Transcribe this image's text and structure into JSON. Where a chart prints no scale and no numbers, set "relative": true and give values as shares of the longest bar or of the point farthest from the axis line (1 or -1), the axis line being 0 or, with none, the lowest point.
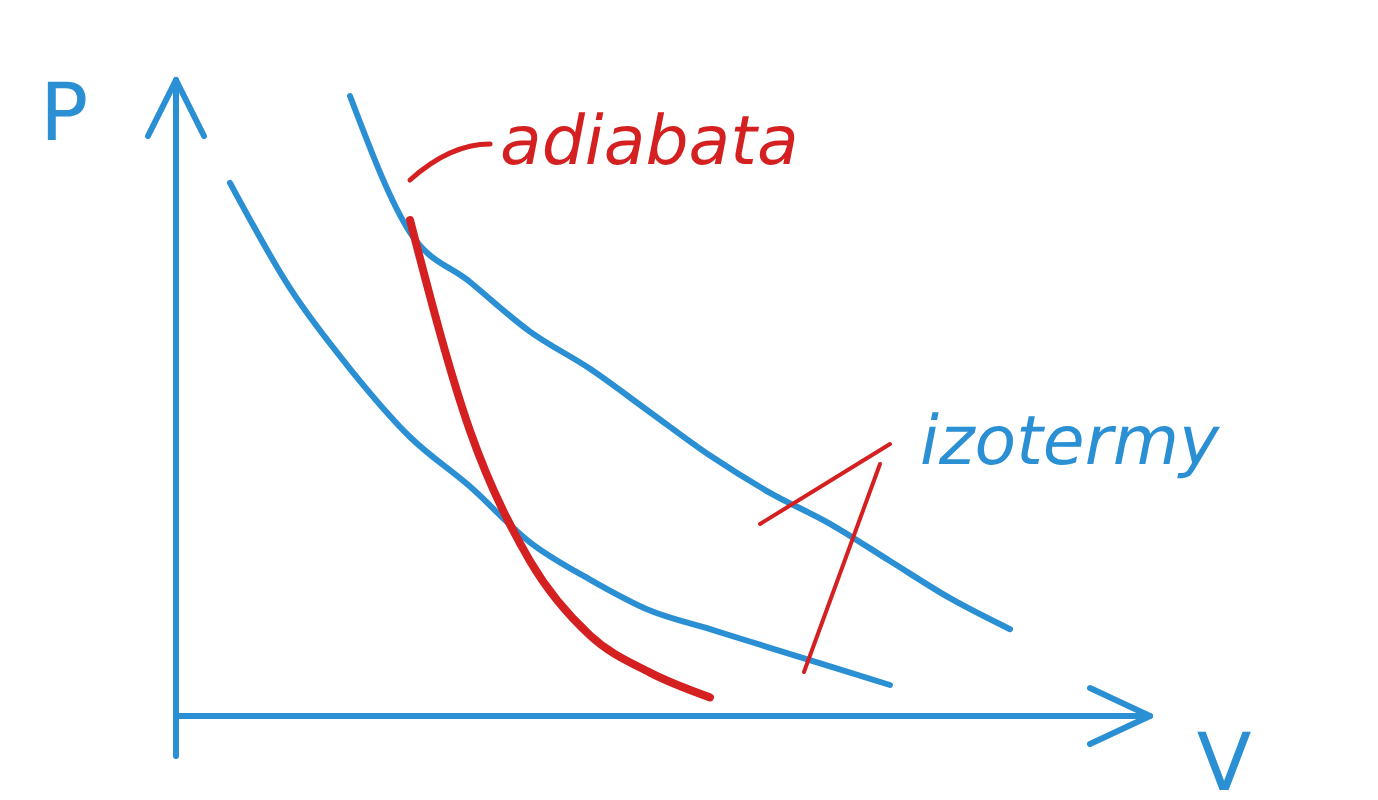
{
  "chart_data": {
    "type": "line",
    "relative": true,
    "xlabel": "V",
    "ylabel": "P",
    "legend": false,
    "grid": false,
    "marker": "none",
    "line_style": "solid",
    "categories": [
      null,
      null,
      null,
      null,
      null,
      null,
      null,
      null,
      null,
      null,
      null,
      null,
      null,
      null
    ],
    "series": [
      {
        "color": "#2b8fd4",
        "values": [
          0.86,
          0.69,
          0.56,
          0.45,
          0.37,
          0.28,
          0.22,
          0.17,
          0.14,
          0.11,
          0.08,
          0.05,
          null,
          null
        ]
      },
      {
        "color": "#2b8fd4",
        "values": [
          null,
          null,
          1.0,
          0.78,
          0.7,
          0.62,
          0.56,
          0.49,
          0.42,
          0.36,
          0.31,
          0.25,
          0.19,
          0.14
        ]
      },
      {
        "color": "#d42020",
        "values": [
          null,
          null,
          null,
          0.8,
          0.46,
          0.25,
          0.13,
          0.07,
          0.03,
          null,
          null,
          null,
          null,
          null
        ]
      }
    ],
    "annotations": [
      "adiabata",
      "izotermy"
    ]
  }
}
